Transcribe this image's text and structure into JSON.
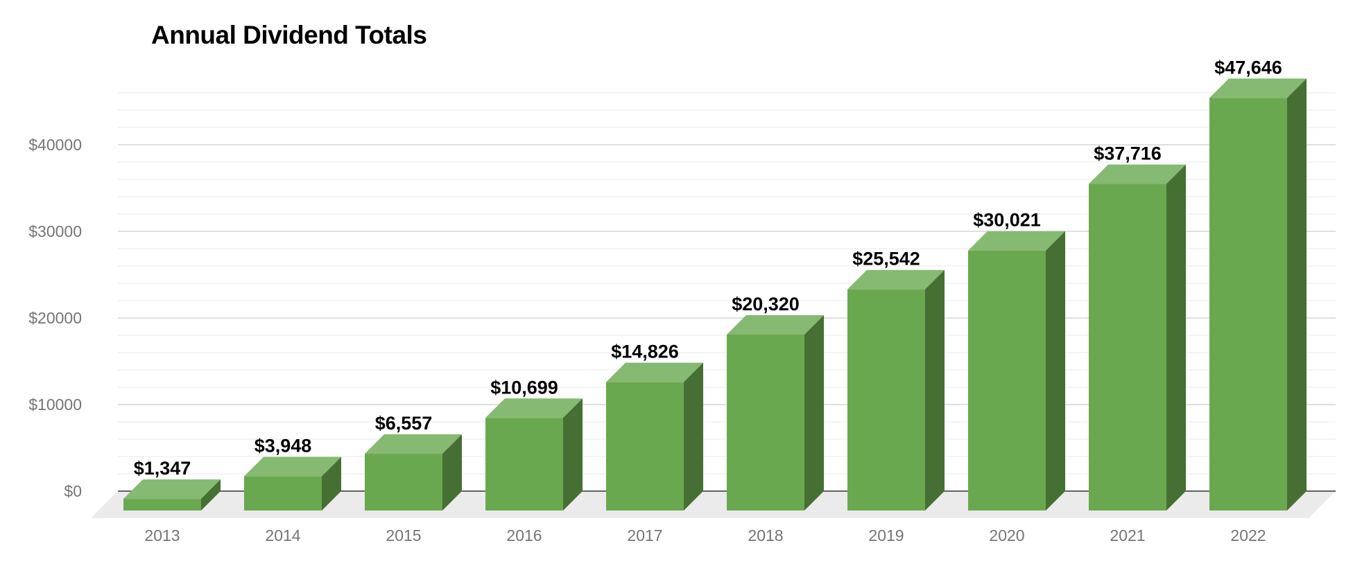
{
  "colors": {
    "bar_front": "#6aa84f",
    "bar_top": "#86b971",
    "bar_side": "#456f33",
    "floor": "#ebebeb",
    "grid_major": "#d6d6d6",
    "grid_minor": "#eeeeee",
    "axis_text": "#757575"
  },
  "chart_data": {
    "type": "bar",
    "title": "Annual Dividend Totals",
    "xlabel": "",
    "ylabel": "",
    "categories": [
      "2013",
      "2014",
      "2015",
      "2016",
      "2017",
      "2018",
      "2019",
      "2020",
      "2021",
      "2022"
    ],
    "values": [
      1347,
      3948,
      6557,
      10699,
      14826,
      20320,
      25542,
      30021,
      37716,
      47646
    ],
    "data_labels": [
      "$1,347",
      "$3,948",
      "$6,557",
      "$10,699",
      "$14,826",
      "$20,320",
      "$25,542",
      "$30,021",
      "$37,716",
      "$47,646"
    ],
    "y_ticks": [
      0,
      10000,
      20000,
      30000,
      40000
    ],
    "y_tick_labels": [
      "$0",
      "$10000",
      "$20000",
      "$30000",
      "$40000"
    ],
    "ylim": [
      0,
      47000
    ],
    "grid": true,
    "legend": "none",
    "style": "3d"
  }
}
